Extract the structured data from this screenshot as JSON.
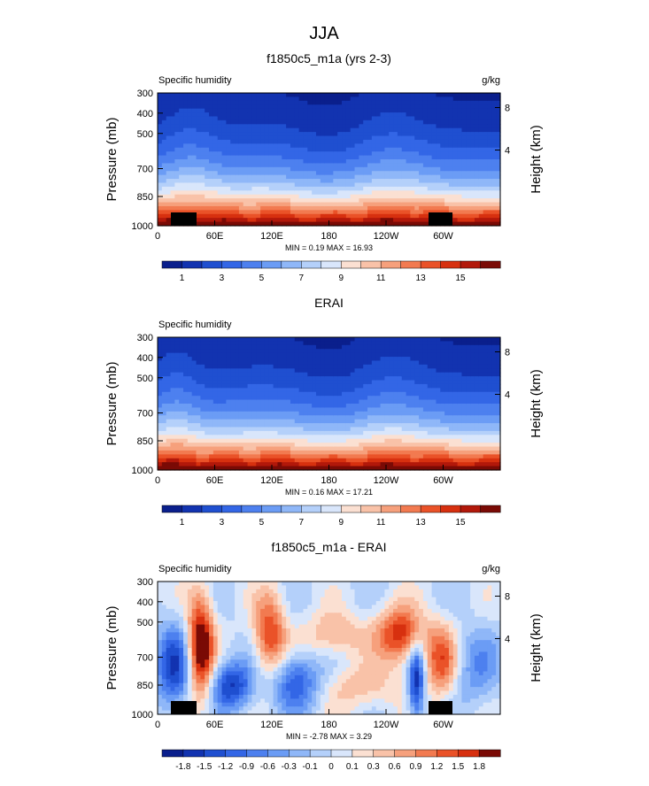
{
  "main_title": "JJA",
  "chart_data": [
    {
      "type": "heatmap",
      "title": "f1850c5_m1a (yrs 2-3)",
      "left_label": "Specific humidity",
      "right_label": "g/kg",
      "ylabel": "Pressure (mb)",
      "ylabel_right": "Height (km)",
      "yticks": [
        "300",
        "400",
        "500",
        "700",
        "850",
        "1000"
      ],
      "yticks_right": [
        "8",
        "4"
      ],
      "xticks": [
        "0",
        "60E",
        "120E",
        "180",
        "120W",
        "60W"
      ],
      "stats": "MIN =   0.19  MAX =  16.93",
      "colorbar_labels": [
        "1",
        "3",
        "5",
        "7",
        "9",
        "11",
        "13",
        "15"
      ],
      "colormap": [
        "#0a1f8c",
        "#1233b0",
        "#1f4fd0",
        "#3366e6",
        "#4d80ef",
        "#6b9cf5",
        "#8fb7f8",
        "#b4d0fa",
        "#d9e6fb",
        "#fbe0d2",
        "#f9c2a8",
        "#f6a07c",
        "#f27a50",
        "#ea5228",
        "#d7300f",
        "#b2180a",
        "#7a0a05"
      ],
      "value_range": [
        0,
        17
      ]
    },
    {
      "type": "heatmap",
      "title": "ERAI",
      "left_label": "Specific humidity",
      "right_label": "",
      "ylabel": "Pressure (mb)",
      "ylabel_right": "Height (km)",
      "yticks": [
        "300",
        "400",
        "500",
        "700",
        "850",
        "1000"
      ],
      "yticks_right": [
        "8",
        "4"
      ],
      "xticks": [
        "0",
        "60E",
        "120E",
        "180",
        "120W",
        "60W"
      ],
      "stats": "MIN =   0.16  MAX =  17.21",
      "colorbar_labels": [
        "1",
        "3",
        "5",
        "7",
        "9",
        "11",
        "13",
        "15"
      ],
      "colormap": [
        "#0a1f8c",
        "#1233b0",
        "#1f4fd0",
        "#3366e6",
        "#4d80ef",
        "#6b9cf5",
        "#8fb7f8",
        "#b4d0fa",
        "#d9e6fb",
        "#fbe0d2",
        "#f9c2a8",
        "#f6a07c",
        "#f27a50",
        "#ea5228",
        "#d7300f",
        "#b2180a",
        "#7a0a05"
      ],
      "value_range": [
        0,
        17
      ]
    },
    {
      "type": "heatmap",
      "title": "f1850c5_m1a - ERAI",
      "left_label": "Specific humidity",
      "right_label": "g/kg",
      "ylabel": "Pressure (mb)",
      "ylabel_right": "Height (km)",
      "yticks": [
        "300",
        "400",
        "500",
        "700",
        "850",
        "1000"
      ],
      "yticks_right": [
        "8",
        "4"
      ],
      "xticks": [
        "0",
        "60E",
        "120E",
        "180",
        "120W",
        "60W"
      ],
      "stats": "MIN =  -2.78  MAX =   3.29",
      "colorbar_labels": [
        "-1.8",
        "-1.5",
        "-1.2",
        "-0.9",
        "-0.6",
        "-0.3",
        "-0.1",
        "0",
        "0.1",
        "0.3",
        "0.6",
        "0.9",
        "1.2",
        "1.5",
        "1.8"
      ],
      "colormap": [
        "#0a1f8c",
        "#1233b0",
        "#1f4fd0",
        "#3366e6",
        "#4d80ef",
        "#6b9cf5",
        "#8fb7f8",
        "#b4d0fa",
        "#d9e6fb",
        "#fbe0d2",
        "#f9c2a8",
        "#f6a07c",
        "#f27a50",
        "#ea5228",
        "#d7300f",
        "#7a0a05"
      ],
      "value_range": [
        -2.1,
        2.1
      ]
    }
  ]
}
